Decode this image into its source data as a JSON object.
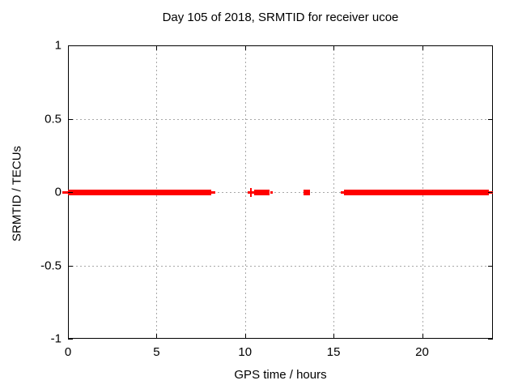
{
  "window": {
    "background": "#ffffff"
  },
  "chart_data": {
    "type": "scatter",
    "title": "Day 105 of 2018, SRMTID for receiver ucoe",
    "xlabel": "GPS time / hours",
    "ylabel": "SRMTID / TECUs",
    "xlim": [
      0,
      24
    ],
    "ylim": [
      -1,
      1
    ],
    "x_ticks": [
      0,
      5,
      10,
      15,
      20
    ],
    "x_tick_labels": [
      "0",
      "5",
      "10",
      "15",
      "20"
    ],
    "y_ticks": [
      1,
      0.5,
      0,
      -0.5,
      -1
    ],
    "y_tick_labels": [
      "1",
      "0.5",
      "0",
      "-0.5",
      "-1"
    ],
    "grid_x": [
      5,
      10,
      15,
      20
    ],
    "grid_y": [
      0.5,
      0,
      -0.5
    ],
    "grid": true,
    "legend": "none",
    "series_color": "#ff0000",
    "grid_color": "#a8a8a8",
    "border_color": "#000000",
    "series_value_y": 0,
    "segments": [
      {
        "kind": "line",
        "start": -0.3,
        "end": 0
      },
      {
        "kind": "bar",
        "start": 0,
        "end": 8.09
      },
      {
        "kind": "line",
        "start": 8.09,
        "end": 8.32
      },
      {
        "kind": "plus",
        "start": 10.15,
        "end": 10.51
      },
      {
        "kind": "bar",
        "start": 10.51,
        "end": 11.4
      },
      {
        "kind": "line",
        "start": 11.45,
        "end": 11.58
      },
      {
        "kind": "bar",
        "start": 13.3,
        "end": 13.67
      },
      {
        "kind": "line",
        "start": 15.4,
        "end": 15.59
      },
      {
        "kind": "bar",
        "start": 15.59,
        "end": 23.77
      },
      {
        "kind": "line",
        "start": 23.77,
        "end": 24.0
      }
    ]
  }
}
